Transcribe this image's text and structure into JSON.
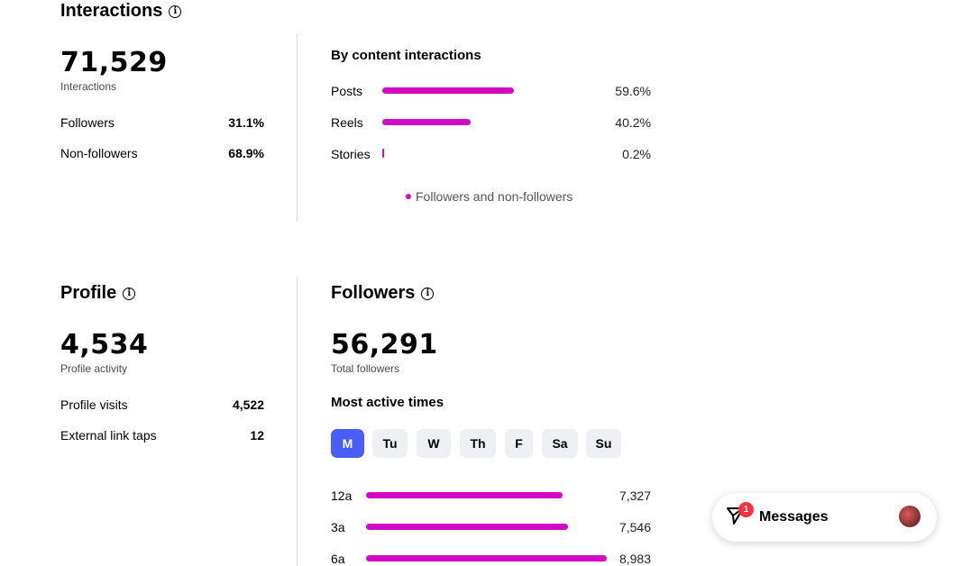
{
  "interactions": {
    "title": "Interactions",
    "info_icon": "info-icon",
    "total": "71,529",
    "total_label": "Interactions",
    "breakdown": [
      {
        "label": "Followers",
        "value": "31.1%"
      },
      {
        "label": "Non-followers",
        "value": "68.9%"
      }
    ],
    "by_content": {
      "title": "By content interactions",
      "items": [
        {
          "label": "Posts",
          "value": "59.6%",
          "fraction": 0.596
        },
        {
          "label": "Reels",
          "value": "40.2%",
          "fraction": 0.402
        },
        {
          "label": "Stories",
          "value": "0.2%",
          "fraction": 0.002
        }
      ],
      "legend": "Followers and non-followers"
    }
  },
  "profile": {
    "title": "Profile",
    "total": "4,534",
    "total_label": "Profile activity",
    "rows": [
      {
        "label": "Profile visits",
        "value": "4,522"
      },
      {
        "label": "External link taps",
        "value": "12"
      }
    ]
  },
  "followers": {
    "title": "Followers",
    "total": "56,291",
    "total_label": "Total followers",
    "active_title": "Most active times",
    "days": [
      "M",
      "Tu",
      "W",
      "Th",
      "F",
      "Sa",
      "Su"
    ],
    "selected_day": "M",
    "times": [
      {
        "label": "12a",
        "value": "7,327",
        "count": 7327
      },
      {
        "label": "3a",
        "value": "7,546",
        "count": 7546
      },
      {
        "label": "6a",
        "value": "8,983",
        "count": 8983
      }
    ]
  },
  "messages": {
    "label": "Messages",
    "badge": "1",
    "icon": "send-icon"
  },
  "colors": {
    "bar": "#d10bc5",
    "active_day": "#4a5df9"
  }
}
